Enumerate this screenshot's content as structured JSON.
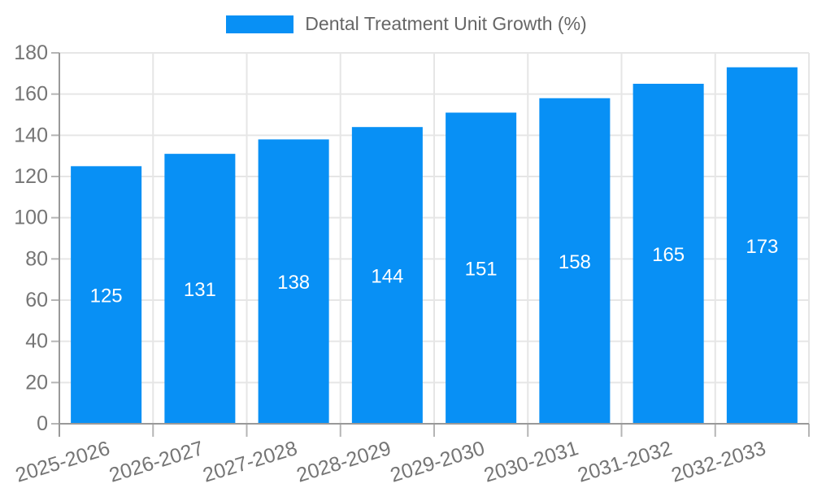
{
  "chart_data": {
    "type": "bar",
    "title": "Dental Treatment Unit Growth (%)",
    "categories": [
      "2025-2026",
      "2026-2027",
      "2027-2028",
      "2028-2029",
      "2029-2030",
      "2030-2031",
      "2031-2032",
      "2032-2033"
    ],
    "values": [
      125,
      131,
      138,
      144,
      151,
      158,
      165,
      173
    ],
    "value_labels": [
      "125",
      "131",
      "138",
      "144",
      "151",
      "158",
      "165",
      "173"
    ],
    "xlabel": "",
    "ylabel": "",
    "ylim": [
      0,
      180
    ],
    "ytick_step": 20,
    "yticks": [
      0,
      20,
      40,
      60,
      80,
      100,
      120,
      140,
      160,
      180
    ],
    "grid": true,
    "vertical_grid": true,
    "legend_position": "top-center",
    "x_label_rotation_deg": -17,
    "value_labels_inside_centered": true,
    "bar_color": "#0890f5",
    "value_label_color": "#ffffff",
    "grid_color": "#e6e6e6",
    "axis_color": "#999999",
    "tick_mark_color": "#b5b5b5",
    "tick_text_color": "#757575",
    "legend_text_color": "#666666",
    "background_color": "#ffffff"
  }
}
